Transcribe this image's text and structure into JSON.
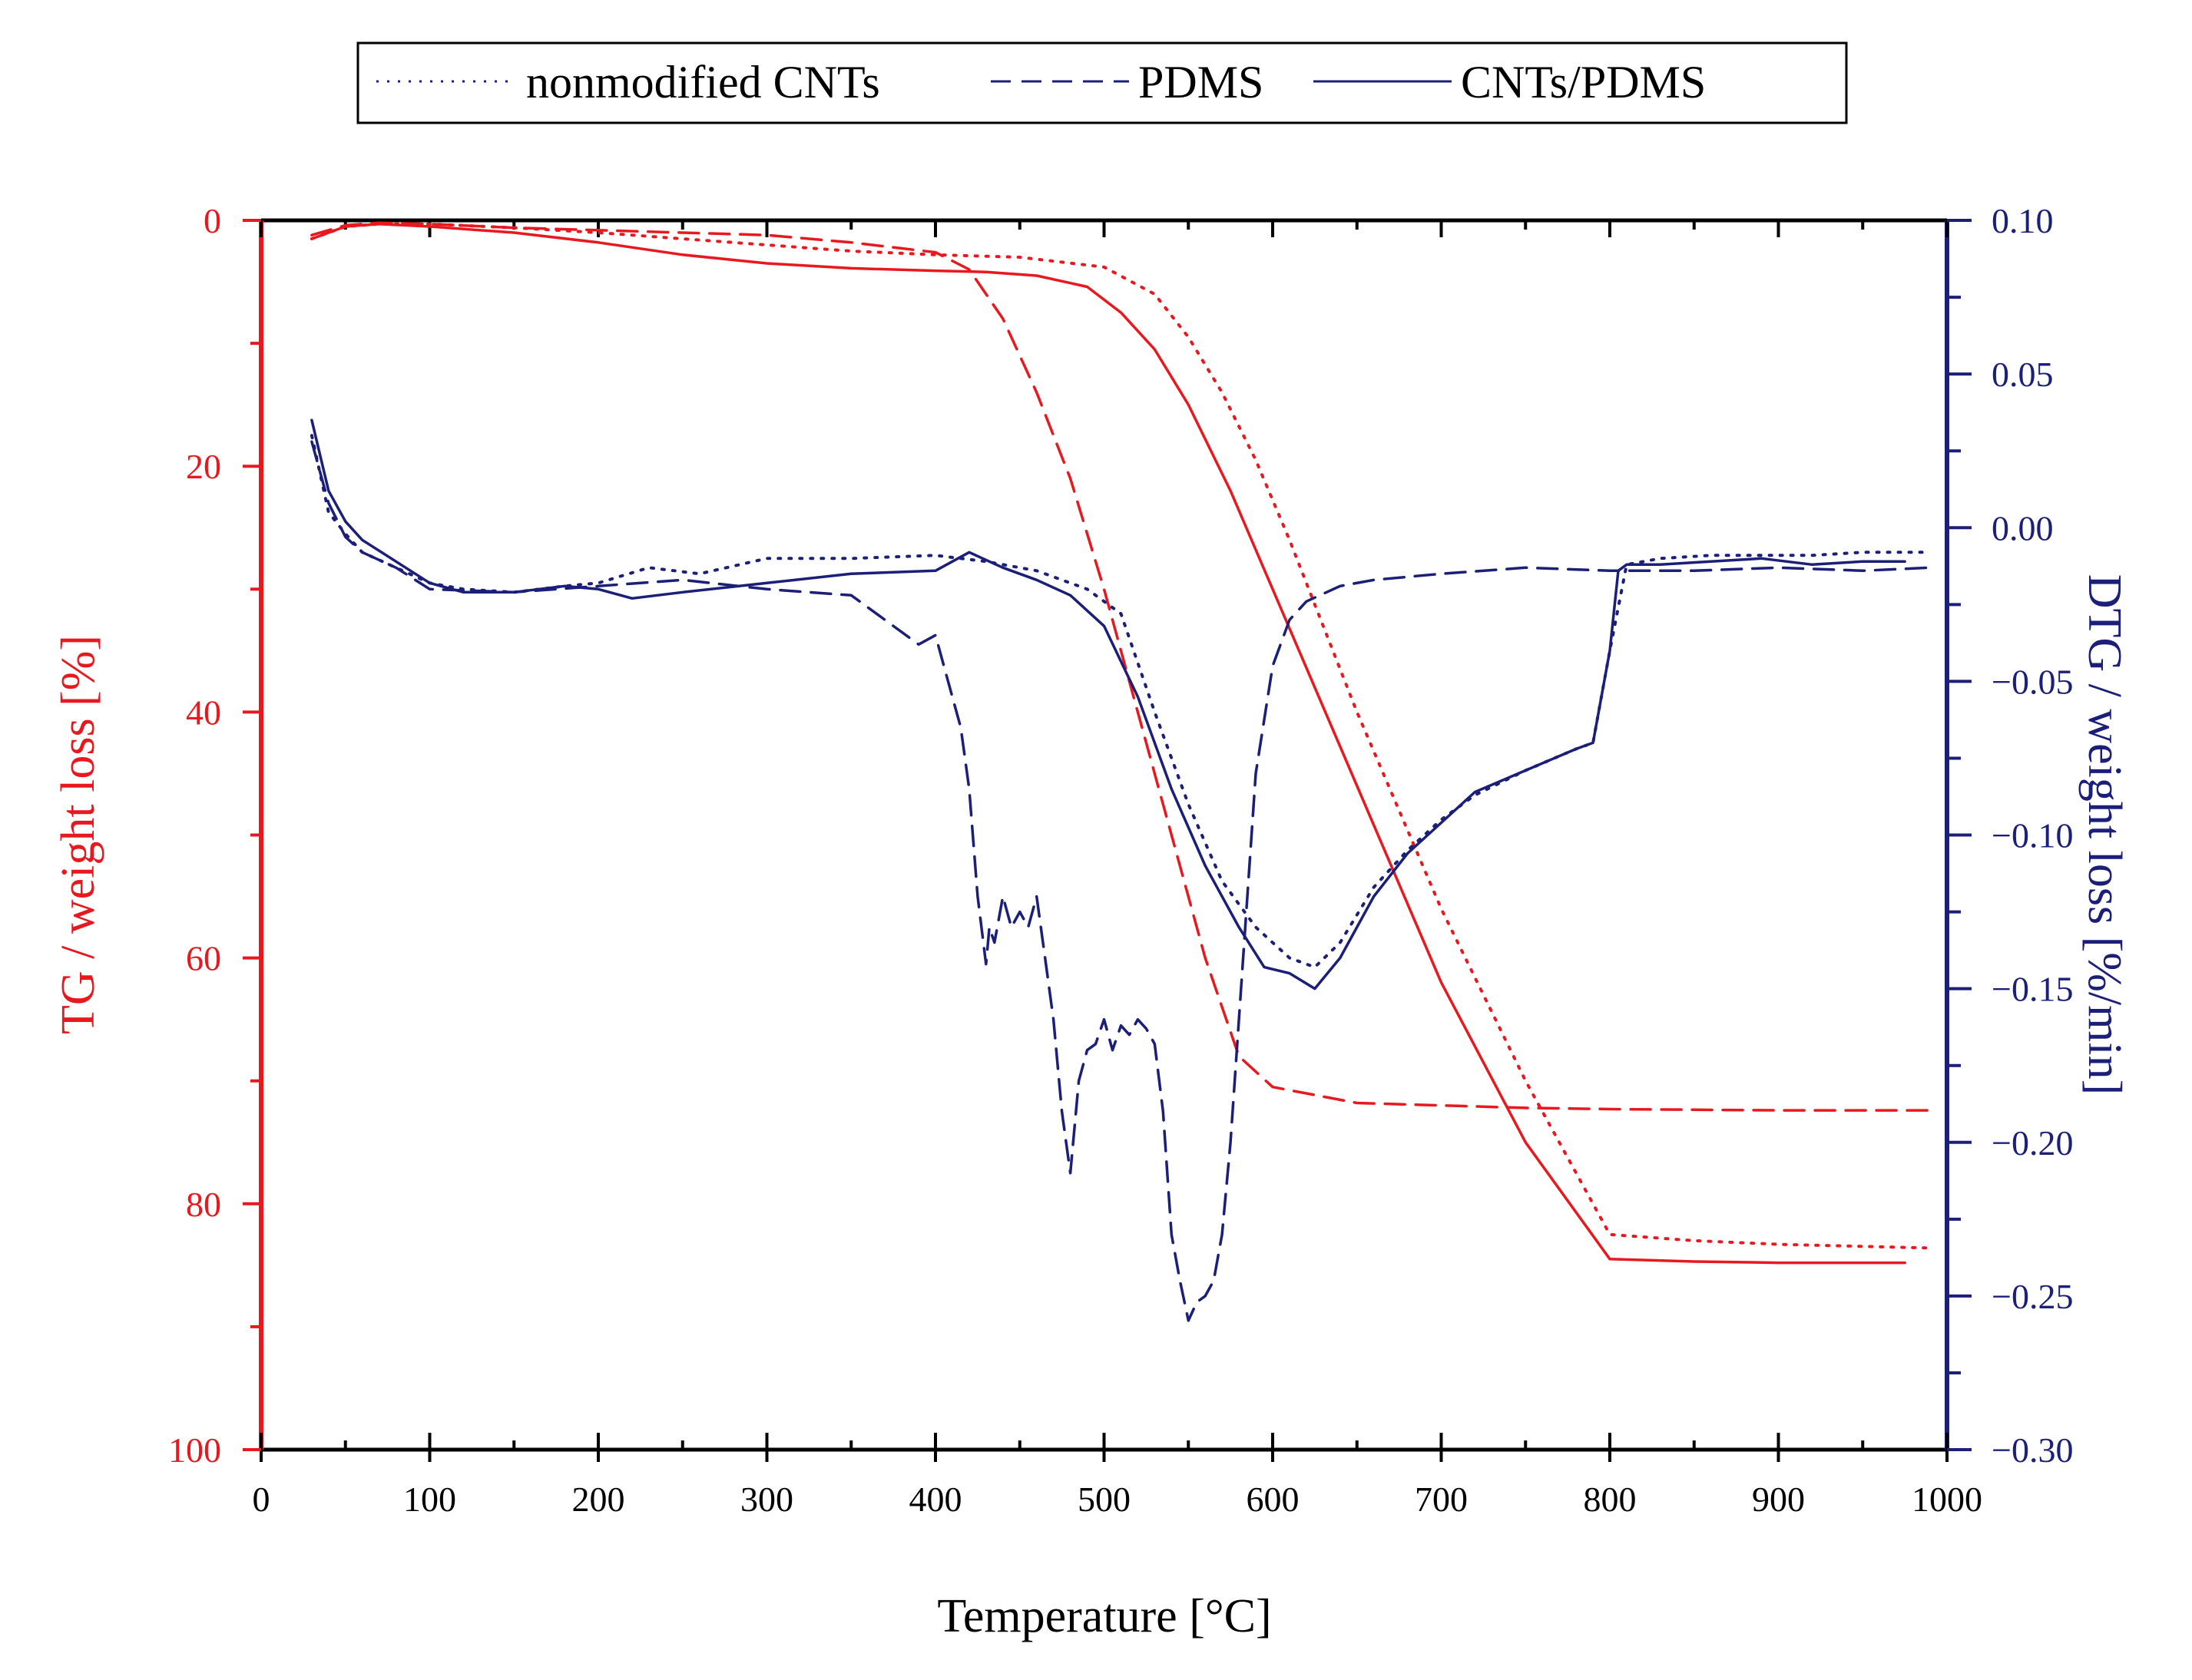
{
  "colors": {
    "tg": "#e8191e",
    "dtg": "#1b1f78",
    "frame": "#000000"
  },
  "chart_data": {
    "type": "line",
    "title": "",
    "xlabel": "Temperature [°C]",
    "ylabel_left": "TG / weight loss [%]",
    "ylabel_right": "DTG / weight loss [%/min]",
    "xlim": [
      0,
      1000
    ],
    "ylim_left": [
      0,
      100
    ],
    "ylim_left_inverted": true,
    "ylim_right": [
      -0.3,
      0.1
    ],
    "grid": false,
    "legend_position": "top-center",
    "x_ticks": [
      "0",
      "100",
      "200",
      "300",
      "400",
      "500",
      "600",
      "700",
      "800",
      "900",
      "1000"
    ],
    "left_ticks": [
      "0",
      "20",
      "40",
      "60",
      "80",
      "100"
    ],
    "right_ticks": [
      "0.10",
      "0.05",
      "0.00",
      "−0.05",
      "−0.10",
      "−0.15",
      "−0.20",
      "−0.25",
      "−0.30"
    ],
    "legend": [
      {
        "label": "nonmodified CNTs",
        "style": "dotted"
      },
      {
        "label": "PDMS",
        "style": "dashed"
      },
      {
        "label": "CNTs/PDMS",
        "style": "solid"
      }
    ],
    "series": [
      {
        "name": "CNTs/PDMS TG",
        "axis": "left",
        "color": "tg",
        "style": "solid",
        "x": [
          30,
          50,
          70,
          100,
          150,
          200,
          250,
          300,
          350,
          400,
          430,
          460,
          490,
          510,
          530,
          550,
          575,
          600,
          625,
          650,
          700,
          750,
          800,
          850,
          900,
          975
        ],
        "y": [
          1.5,
          0.5,
          0.3,
          0.5,
          1.0,
          1.8,
          2.8,
          3.5,
          3.9,
          4.1,
          4.2,
          4.5,
          5.4,
          7.5,
          10.5,
          15,
          22,
          30,
          38,
          46,
          62,
          75,
          84.5,
          84.7,
          84.8,
          84.8
        ]
      },
      {
        "name": "nonmodified CNTs TG",
        "axis": "left",
        "color": "tg",
        "style": "dotted",
        "x": [
          30,
          50,
          70,
          100,
          150,
          200,
          250,
          300,
          350,
          400,
          450,
          500,
          530,
          550,
          570,
          590,
          610,
          630,
          650,
          700,
          750,
          800,
          850,
          900,
          990
        ],
        "y": [
          1.5,
          0.5,
          0.3,
          0.3,
          0.6,
          1.0,
          1.5,
          2.0,
          2.5,
          2.8,
          3.0,
          3.8,
          6,
          9.5,
          14,
          19.5,
          26,
          33,
          40,
          56,
          70,
          82.5,
          83,
          83.3,
          83.6
        ]
      },
      {
        "name": "PDMS TG",
        "axis": "left",
        "color": "tg",
        "style": "dashed",
        "x": [
          30,
          50,
          70,
          100,
          150,
          200,
          250,
          300,
          350,
          400,
          420,
          440,
          460,
          480,
          500,
          520,
          540,
          560,
          580,
          600,
          650,
          700,
          750,
          800,
          900,
          990
        ],
        "y": [
          1.2,
          0.4,
          0.2,
          0.3,
          0.6,
          0.8,
          1.0,
          1.2,
          1.8,
          2.6,
          4,
          8,
          14,
          21,
          30,
          40,
          50,
          60,
          68,
          70.5,
          71.8,
          72.0,
          72.2,
          72.3,
          72.4,
          72.4
        ]
      },
      {
        "name": "CNTs/PDMS DTG",
        "axis": "right",
        "color": "dtg",
        "style": "solid",
        "x": [
          30,
          40,
          50,
          60,
          80,
          100,
          120,
          150,
          180,
          200,
          220,
          250,
          300,
          350,
          400,
          420,
          440,
          460,
          480,
          500,
          520,
          540,
          560,
          580,
          595,
          610,
          625,
          640,
          660,
          680,
          700,
          720,
          750,
          780,
          790,
          800,
          805,
          810,
          830,
          860,
          890,
          920,
          950,
          975
        ],
        "y": [
          0.035,
          0.012,
          0.002,
          -0.004,
          -0.011,
          -0.018,
          -0.021,
          -0.021,
          -0.019,
          -0.02,
          -0.023,
          -0.021,
          -0.018,
          -0.015,
          -0.014,
          -0.008,
          -0.013,
          -0.017,
          -0.022,
          -0.032,
          -0.055,
          -0.085,
          -0.11,
          -0.13,
          -0.143,
          -0.145,
          -0.15,
          -0.14,
          -0.12,
          -0.106,
          -0.096,
          -0.086,
          -0.079,
          -0.072,
          -0.07,
          -0.04,
          -0.014,
          -0.012,
          -0.012,
          -0.011,
          -0.01,
          -0.012,
          -0.011,
          -0.011
        ]
      },
      {
        "name": "nonmodified CNTs DTG",
        "axis": "right",
        "color": "dtg",
        "style": "dotted",
        "x": [
          30,
          40,
          50,
          60,
          80,
          100,
          120,
          150,
          180,
          200,
          230,
          260,
          300,
          350,
          400,
          430,
          460,
          490,
          510,
          530,
          550,
          570,
          590,
          610,
          625,
          640,
          660,
          680,
          700,
          720,
          750,
          780,
          790,
          800,
          810,
          830,
          860,
          890,
          920,
          950,
          990
        ],
        "y": [
          0.03,
          0.005,
          -0.002,
          -0.008,
          -0.013,
          -0.018,
          -0.02,
          -0.021,
          -0.019,
          -0.018,
          -0.013,
          -0.015,
          -0.01,
          -0.01,
          -0.009,
          -0.011,
          -0.014,
          -0.02,
          -0.028,
          -0.06,
          -0.09,
          -0.115,
          -0.13,
          -0.14,
          -0.143,
          -0.135,
          -0.117,
          -0.105,
          -0.095,
          -0.087,
          -0.079,
          -0.072,
          -0.07,
          -0.04,
          -0.012,
          -0.01,
          -0.009,
          -0.009,
          -0.009,
          -0.008,
          -0.008
        ]
      },
      {
        "name": "PDMS DTG",
        "axis": "right",
        "color": "dtg",
        "style": "dashed",
        "x": [
          30,
          40,
          50,
          60,
          80,
          100,
          150,
          200,
          250,
          300,
          350,
          370,
          390,
          400,
          410,
          415,
          420,
          425,
          430,
          432,
          435,
          440,
          445,
          450,
          455,
          460,
          465,
          470,
          475,
          480,
          485,
          490,
          495,
          500,
          505,
          510,
          515,
          520,
          525,
          530,
          535,
          540,
          545,
          550,
          555,
          560,
          565,
          570,
          575,
          580,
          590,
          600,
          610,
          620,
          640,
          660,
          700,
          750,
          800,
          850,
          900,
          950,
          990
        ],
        "y": [
          0.028,
          0.008,
          -0.003,
          -0.008,
          -0.013,
          -0.02,
          -0.021,
          -0.019,
          -0.017,
          -0.02,
          -0.022,
          -0.03,
          -0.038,
          -0.035,
          -0.055,
          -0.065,
          -0.085,
          -0.12,
          -0.142,
          -0.13,
          -0.135,
          -0.12,
          -0.13,
          -0.125,
          -0.13,
          -0.12,
          -0.14,
          -0.16,
          -0.19,
          -0.21,
          -0.18,
          -0.17,
          -0.168,
          -0.16,
          -0.17,
          -0.162,
          -0.165,
          -0.16,
          -0.163,
          -0.168,
          -0.19,
          -0.23,
          -0.245,
          -0.258,
          -0.252,
          -0.25,
          -0.245,
          -0.23,
          -0.2,
          -0.16,
          -0.08,
          -0.045,
          -0.03,
          -0.024,
          -0.019,
          -0.017,
          -0.015,
          -0.013,
          -0.014,
          -0.014,
          -0.013,
          -0.014,
          -0.013
        ]
      }
    ]
  }
}
